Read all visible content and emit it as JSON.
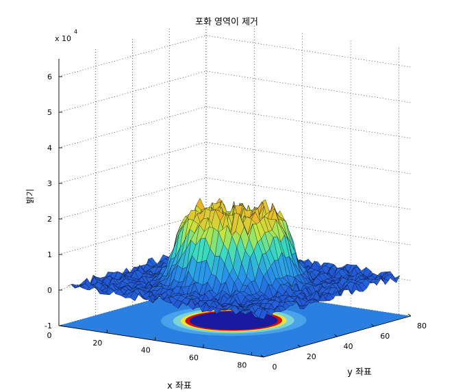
{
  "chart_data": {
    "type": "surface3d",
    "title": "포화 영역이 제거",
    "xlabel": "x 좌표",
    "ylabel": "y 좌표",
    "zlabel": "밝기",
    "z_exponent_label": "x 10",
    "z_exponent_power": "4",
    "xlim": [
      0,
      85
    ],
    "ylim": [
      0,
      80
    ],
    "zlim": [
      -1,
      6.5
    ],
    "x_ticks": [
      "0",
      "20",
      "40",
      "60",
      "80"
    ],
    "y_ticks": [
      "0",
      "20",
      "40",
      "60",
      "80"
    ],
    "z_ticks": [
      "-1",
      "0",
      "1",
      "2",
      "3",
      "4",
      "5",
      "6"
    ],
    "grid": true,
    "colormap": "jet",
    "surface": {
      "center_x": 42,
      "center_y": 40,
      "plateau_radius": 15,
      "peak_z": 2.0,
      "base_z": 0.1,
      "noise": 0.3
    },
    "floor_projection": {
      "type": "contour_ring",
      "ring_radius": 15,
      "inner_color": "#1a1aa0",
      "ring_color": "#d01010",
      "background_color": "#2a7fe0"
    },
    "colors": {
      "low": "#1f4fd0",
      "mid": "#30d0c0",
      "high": "#e8e020",
      "peak": "#c81a1a"
    }
  }
}
